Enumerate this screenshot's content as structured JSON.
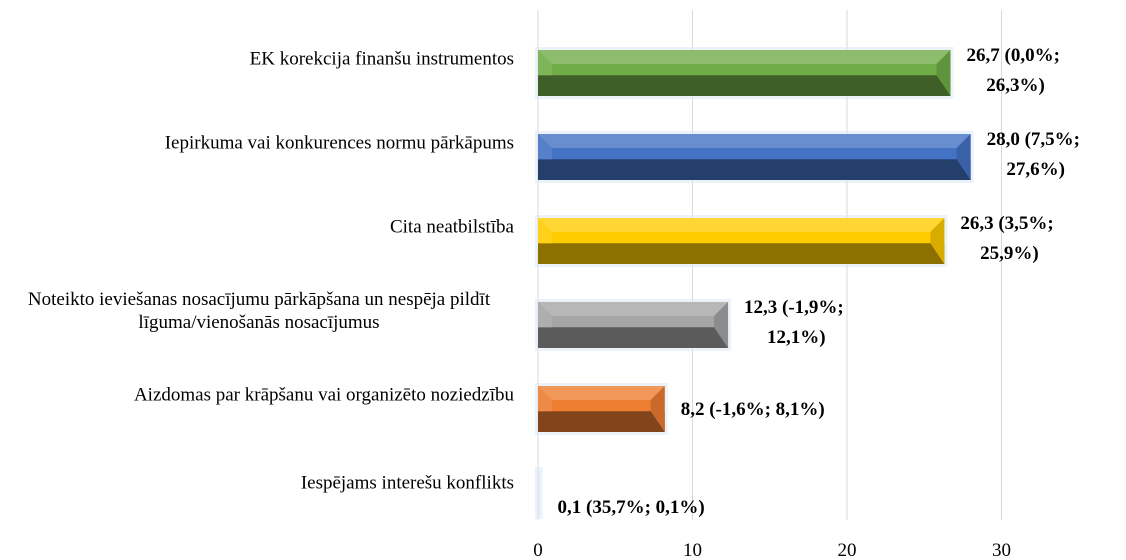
{
  "chart_data": {
    "type": "barh",
    "categories": [
      "EK korekcija finanšu instrumentos",
      "Iepirkuma vai konkurences normu pārkāpums",
      "Cita neatbilstība",
      "Noteikto ieviešanas nosacījumu pārkāpšana un nespēja pildīt līguma/vienošanās nosacījumus",
      "Aizdomas par krāpšanu vai organizēto noziedzību",
      "Iespējams interešu konflikts"
    ],
    "values": [
      26.7,
      28.0,
      26.3,
      12.3,
      8.2,
      0.1
    ],
    "value_labels": [
      "26,7 (0,0%; 26,3%)",
      "28,0 (7,5%; 27,6%)",
      "26,3 (3,5%; 25,9%)",
      "12,3 (-1,9%; 12,1%)",
      "8,2 (-1,6%; 8,1%)",
      "0,1 (35,7%; 0,1%)"
    ],
    "colors": [
      "#70ad47",
      "#4472c4",
      "#ffcc00",
      "#a5a5a5",
      "#ed7d31",
      "#dce8f5"
    ],
    "xlim": [
      0,
      36
    ],
    "xticks": [
      0,
      10,
      20,
      30
    ],
    "grid": true
  }
}
